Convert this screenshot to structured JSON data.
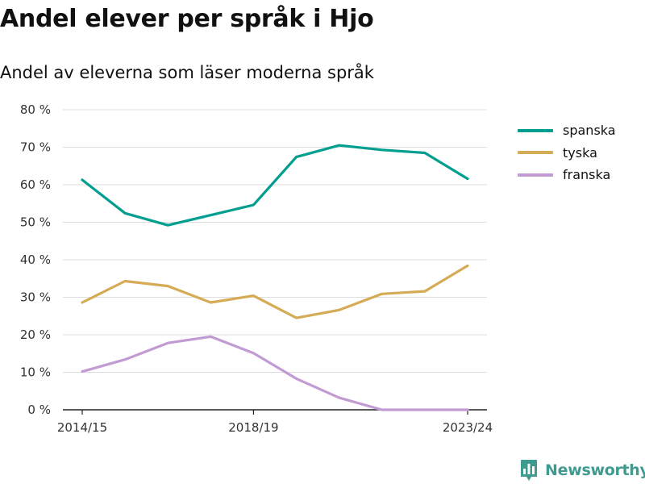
{
  "chart_data": {
    "type": "line",
    "title": "Andel elever per språk i Hjo",
    "subtitle": "Andel av eleverna som läser moderna språk",
    "xlabel": "",
    "ylabel": "",
    "x_tick_labels": [
      "2014/15",
      "2018/19",
      "2023/24"
    ],
    "y_tick_labels": [
      "0 %",
      "10 %",
      "20 %",
      "30 %",
      "40 %",
      "50 %",
      "60 %",
      "70 %",
      "80 %"
    ],
    "ylim": [
      0,
      80
    ],
    "grid": true,
    "legend_position": "top-right",
    "categories": [
      "2014/15",
      "2015/16",
      "2016/17",
      "2017/18",
      "2018/19",
      "2019/20",
      "2020/21",
      "2021/22",
      "2022/23",
      "2023/24"
    ],
    "series": [
      {
        "name": "spanska",
        "color": "#009e8e",
        "values": [
          61.3,
          52.4,
          49.2,
          51.9,
          54.6,
          67.4,
          70.5,
          69.3,
          68.5,
          61.6
        ]
      },
      {
        "name": "tyska",
        "color": "#d6ab55",
        "values": [
          28.6,
          34.3,
          33.0,
          28.6,
          30.4,
          24.5,
          26.6,
          30.9,
          31.6,
          38.4
        ]
      },
      {
        "name": "franska",
        "color": "#c39bd3",
        "values": [
          10.2,
          13.4,
          17.8,
          19.5,
          15.1,
          8.3,
          3.2,
          0,
          0,
          0
        ]
      }
    ]
  },
  "brand": {
    "name": "Newsworthy",
    "icon": "bar-chart-icon",
    "color": "#3f9a8f"
  }
}
